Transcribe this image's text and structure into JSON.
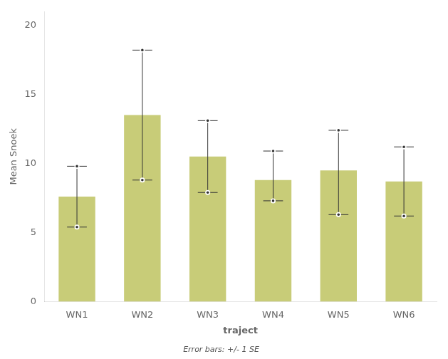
{
  "chart_data": {
    "type": "bar",
    "categories": [
      "WN1",
      "WN2",
      "WN3",
      "WN4",
      "WN5",
      "WN6"
    ],
    "values": [
      7.6,
      13.5,
      10.5,
      8.8,
      9.5,
      8.7
    ],
    "errors_upper": [
      2.2,
      4.7,
      2.6,
      2.1,
      2.9,
      2.5
    ],
    "errors_lower": [
      2.2,
      4.7,
      2.6,
      1.5,
      3.2,
      2.5
    ],
    "color": "#c8cc78",
    "xlabel": "traject",
    "ylabel": "Mean Snoek",
    "ylim": [
      0,
      21
    ],
    "yticks": [
      0,
      5,
      10,
      15,
      20
    ],
    "footnote": "Error bars: +/- 1 SE",
    "grid": false
  }
}
